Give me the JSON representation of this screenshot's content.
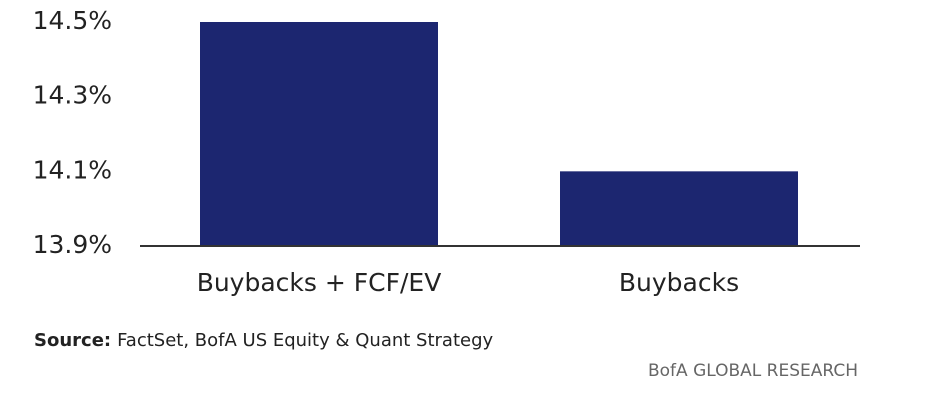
{
  "chart_data": {
    "type": "bar",
    "categories": [
      "Buybacks + FCF/EV",
      "Buybacks"
    ],
    "values": [
      14.5,
      14.1
    ],
    "color": "#1c2670",
    "ylim": [
      13.9,
      14.5
    ],
    "yticks": [
      {
        "value": 13.9,
        "label": "13.9%"
      },
      {
        "value": 14.1,
        "label": "14.1%"
      },
      {
        "value": 14.3,
        "label": "14.3%"
      },
      {
        "value": 14.5,
        "label": "14.5%"
      }
    ],
    "source_label": "Source:",
    "source": "FactSet, BofA US Equity & Quant Strategy",
    "footer": "BofA GLOBAL RESEARCH"
  }
}
